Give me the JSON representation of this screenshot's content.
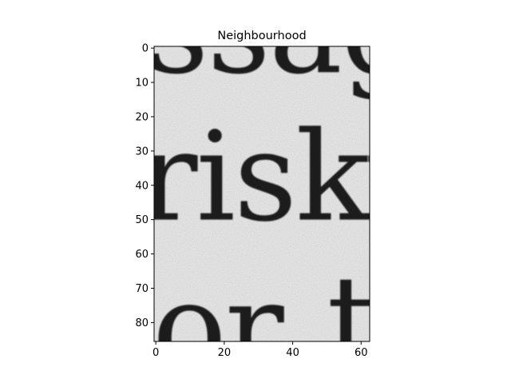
{
  "chart_data": {
    "type": "heatmap",
    "title": "Neighbourhood",
    "xlabel": "",
    "ylabel": "",
    "xlim": [
      -0.5,
      62.5
    ],
    "ylim": [
      85.5,
      -0.5
    ],
    "x_ticks": [
      0,
      20,
      40,
      60
    ],
    "y_ticks": [
      0,
      10,
      20,
      30,
      40,
      50,
      60,
      70,
      80
    ],
    "colormap": "gray",
    "grid": false,
    "image_content": {
      "description_text_fragments": [
        {
          "text": "ssag",
          "x": -3,
          "y": 7,
          "cut": "top"
        },
        {
          "text": "risky",
          "x": -5,
          "y": 50
        },
        {
          "text": "or",
          "x": -1,
          "y": 94,
          "cut": "bottom"
        },
        {
          "text": "t",
          "x": 50,
          "y": 92,
          "cut": "bottom"
        }
      ]
    }
  }
}
